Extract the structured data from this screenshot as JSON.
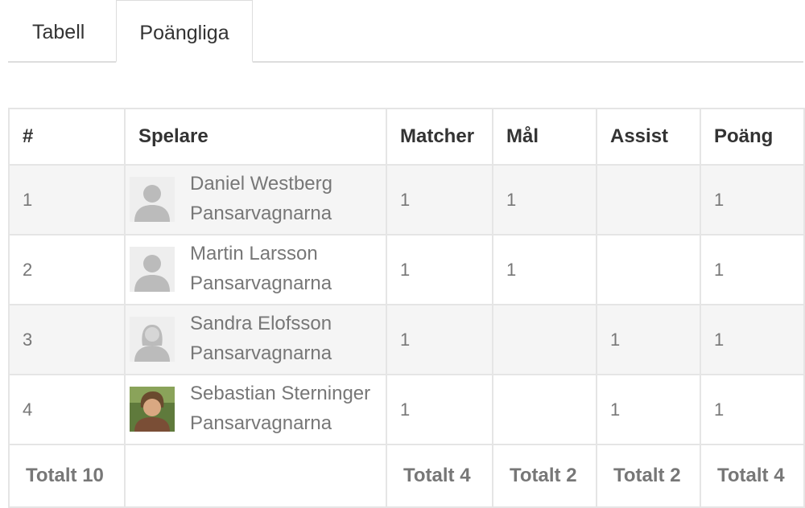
{
  "tabs": [
    {
      "label": "Tabell",
      "active": false
    },
    {
      "label": "Poängliga",
      "active": true
    }
  ],
  "table": {
    "headers": [
      "#",
      "Spelare",
      "Matcher",
      "Mål",
      "Assist",
      "Poäng"
    ],
    "rows": [
      {
        "rank": "1",
        "name": "Daniel Westberg",
        "team": "Pansarvagnarna",
        "avatar": "silhouette-male",
        "matches": "1",
        "goals": "1",
        "assists": "",
        "points": "1"
      },
      {
        "rank": "2",
        "name": "Martin Larsson",
        "team": "Pansarvagnarna",
        "avatar": "silhouette-male",
        "matches": "1",
        "goals": "1",
        "assists": "",
        "points": "1"
      },
      {
        "rank": "3",
        "name": "Sandra Elofsson",
        "team": "Pansarvagnarna",
        "avatar": "silhouette-female",
        "matches": "1",
        "goals": "",
        "assists": "1",
        "points": "1"
      },
      {
        "rank": "4",
        "name": "Sebastian Sterninger",
        "team": "Pansarvagnarna",
        "avatar": "photo",
        "matches": "1",
        "goals": "",
        "assists": "1",
        "points": "1"
      }
    ],
    "totals": {
      "rank": "Totalt 10",
      "player": "",
      "matches": "Totalt 4",
      "goals": "Totalt 2",
      "assists": "Totalt 2",
      "points": "Totalt 4"
    }
  },
  "colors": {
    "border": "#e5e5e5",
    "stripe": "#f5f5f5",
    "header_text": "#333333",
    "cell_text": "#777777",
    "silhouette": "#bbbbbb"
  }
}
